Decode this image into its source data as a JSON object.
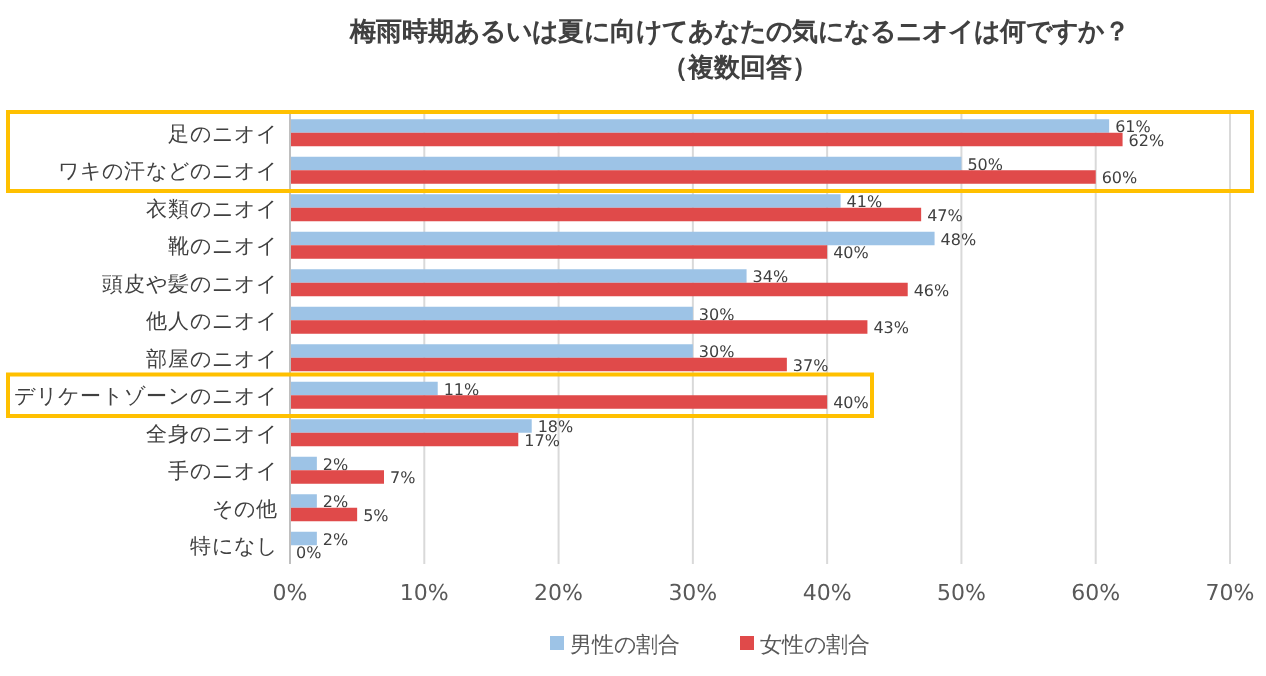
{
  "chart_data": {
    "type": "bar",
    "orientation": "horizontal",
    "title": "梅雨時期あるいは夏に向けてあなたの気になるニオイは何ですか？",
    "subtitle": "（複数回答）",
    "categories": [
      "足のニオイ",
      "ワキの汗などのニオイ",
      "衣類のニオイ",
      "靴のニオイ",
      "頭皮や髪のニオイ",
      "他人のニオイ",
      "部屋のニオイ",
      "デリケートゾーンのニオイ",
      "全身のニオイ",
      "手のニオイ",
      "その他",
      "特になし"
    ],
    "series": [
      {
        "name": "男性の割合",
        "color": "#9dc3e6",
        "values": [
          61,
          50,
          41,
          48,
          34,
          30,
          30,
          11,
          18,
          2,
          2,
          2
        ],
        "value_labels": [
          "61%",
          "50%",
          "41%",
          "48%",
          "34%",
          "30%",
          "30%",
          "11%",
          "18%",
          "2%",
          "2%",
          "2%"
        ]
      },
      {
        "name": "女性の割合",
        "color": "#e04a4a",
        "values": [
          62,
          60,
          47,
          40,
          46,
          43,
          37,
          40,
          17,
          7,
          5,
          0
        ],
        "value_labels": [
          "62%",
          "60%",
          "47%",
          "40%",
          "46%",
          "43%",
          "37%",
          "40%",
          "17%",
          "7%",
          "5%",
          "0%"
        ]
      }
    ],
    "xlim": [
      0,
      70
    ],
    "xticks": [
      {
        "value": 0,
        "label": "0%"
      },
      {
        "value": 10,
        "label": "10%"
      },
      {
        "value": 20,
        "label": "20%"
      },
      {
        "value": 30,
        "label": "30%"
      },
      {
        "value": 40,
        "label": "40%"
      },
      {
        "value": 50,
        "label": "50%"
      },
      {
        "value": 60,
        "label": "60%"
      },
      {
        "value": 70,
        "label": "70%"
      }
    ],
    "grid": "x",
    "legend": "bottom"
  }
}
